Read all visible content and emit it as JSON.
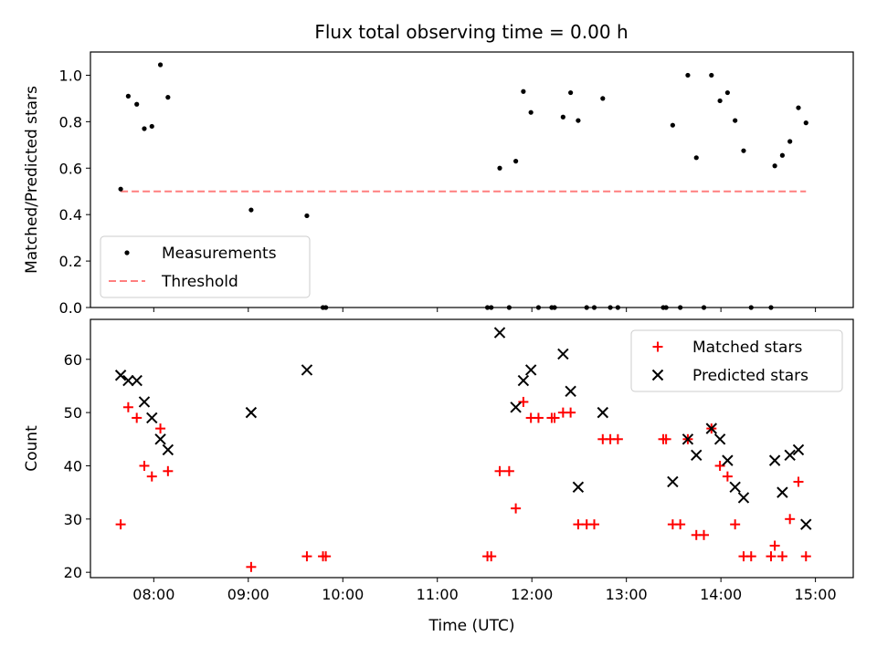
{
  "title": "Flux total observing time = 0.00 h",
  "colors": {
    "measurement": "#000000",
    "threshold": "#ff7f7f",
    "matched": "#ff0000",
    "predicted": "#000000"
  },
  "chart_data": [
    {
      "type": "scatter",
      "ylabel": "Matched/Predicted stars",
      "xlim": [
        7.33,
        15.4
      ],
      "ylim": [
        0.0,
        1.1
      ],
      "yticks": [
        0.0,
        0.2,
        0.4,
        0.6,
        0.8,
        1.0
      ],
      "ytick_labels": [
        "0.0",
        "0.2",
        "0.4",
        "0.6",
        "0.8",
        "1.0"
      ],
      "legend": {
        "position": "lower-left",
        "entries": [
          "Measurements",
          "Threshold"
        ]
      },
      "series": [
        {
          "name": "Measurements",
          "marker": "dot",
          "x": [
            7.65,
            7.73,
            7.82,
            7.9,
            7.98,
            8.07,
            8.15,
            9.03,
            9.62,
            9.79,
            9.82,
            11.53,
            11.57,
            11.66,
            11.76,
            11.83,
            11.91,
            11.99,
            12.07,
            12.21,
            12.24,
            12.33,
            12.41,
            12.49,
            12.58,
            12.66,
            12.75,
            12.83,
            12.91,
            13.39,
            13.42,
            13.49,
            13.57,
            13.65,
            13.74,
            13.82,
            13.9,
            13.99,
            14.07,
            14.15,
            14.24,
            14.32,
            14.53,
            14.57,
            14.65,
            14.73,
            14.82,
            14.9
          ],
          "y": [
            0.51,
            0.91,
            0.875,
            0.77,
            0.78,
            1.045,
            0.905,
            0.42,
            0.395,
            0.0,
            0.0,
            0.0,
            0.0,
            0.6,
            0.0,
            0.63,
            0.93,
            0.84,
            0.0,
            0.0,
            0.0,
            0.82,
            0.925,
            0.805,
            0.0,
            0.0,
            0.9,
            0.0,
            0.0,
            0.0,
            0.0,
            0.785,
            0.0,
            1.0,
            0.645,
            0.0,
            1.0,
            0.89,
            0.925,
            0.805,
            0.675,
            0.0,
            0.0,
            0.61,
            0.655,
            0.715,
            0.86,
            0.795
          ]
        },
        {
          "name": "Threshold",
          "style": "dashed",
          "x": [
            7.65,
            14.9
          ],
          "y": [
            0.5,
            0.5
          ]
        }
      ]
    },
    {
      "type": "scatter",
      "ylabel": "Count",
      "xlabel": "Time (UTC)",
      "xlim": [
        7.33,
        15.4
      ],
      "ylim": [
        19,
        67.5
      ],
      "yticks": [
        20,
        30,
        40,
        50,
        60
      ],
      "ytick_labels": [
        "20",
        "30",
        "40",
        "50",
        "60"
      ],
      "xticks": [
        8,
        9,
        10,
        11,
        12,
        13,
        14,
        15
      ],
      "xtick_labels": [
        "08:00",
        "09:00",
        "10:00",
        "11:00",
        "12:00",
        "13:00",
        "14:00",
        "15:00"
      ],
      "legend": {
        "position": "top-right",
        "entries": [
          "Matched stars",
          "Predicted stars"
        ]
      },
      "series": [
        {
          "name": "Matched stars",
          "marker": "plus",
          "x": [
            7.65,
            7.73,
            7.82,
            7.9,
            7.98,
            8.07,
            8.15,
            9.03,
            9.62,
            9.79,
            9.82,
            11.53,
            11.57,
            11.66,
            11.76,
            11.83,
            11.91,
            11.99,
            12.07,
            12.21,
            12.24,
            12.33,
            12.41,
            12.49,
            12.58,
            12.66,
            12.75,
            12.83,
            12.91,
            13.39,
            13.42,
            13.49,
            13.57,
            13.65,
            13.74,
            13.82,
            13.9,
            13.99,
            14.07,
            14.15,
            14.24,
            14.32,
            14.53,
            14.57,
            14.65,
            14.73,
            14.82,
            14.9
          ],
          "y": [
            29,
            51,
            49,
            40,
            38,
            47,
            39,
            21,
            23,
            23,
            23,
            23,
            23,
            39,
            39,
            32,
            52,
            49,
            49,
            49,
            49,
            50,
            50,
            29,
            29,
            29,
            45,
            45,
            45,
            45,
            45,
            29,
            29,
            45,
            27,
            27,
            47,
            40,
            38,
            29,
            23,
            23,
            23,
            25,
            23,
            30,
            37,
            23
          ]
        },
        {
          "name": "Predicted stars",
          "marker": "x",
          "x": [
            7.65,
            7.73,
            7.82,
            7.9,
            7.98,
            8.07,
            8.15,
            9.03,
            9.62,
            11.66,
            11.83,
            11.91,
            11.99,
            12.33,
            12.41,
            12.49,
            12.75,
            13.49,
            13.65,
            13.74,
            13.9,
            13.99,
            14.07,
            14.15,
            14.24,
            14.57,
            14.65,
            14.73,
            14.82,
            14.9
          ],
          "y": [
            57,
            56,
            56,
            52,
            49,
            45,
            43,
            50,
            58,
            65,
            51,
            56,
            58,
            61,
            54,
            36,
            50,
            37,
            45,
            42,
            47,
            45,
            41,
            36,
            34,
            41,
            35,
            42,
            43,
            29
          ]
        }
      ]
    }
  ]
}
